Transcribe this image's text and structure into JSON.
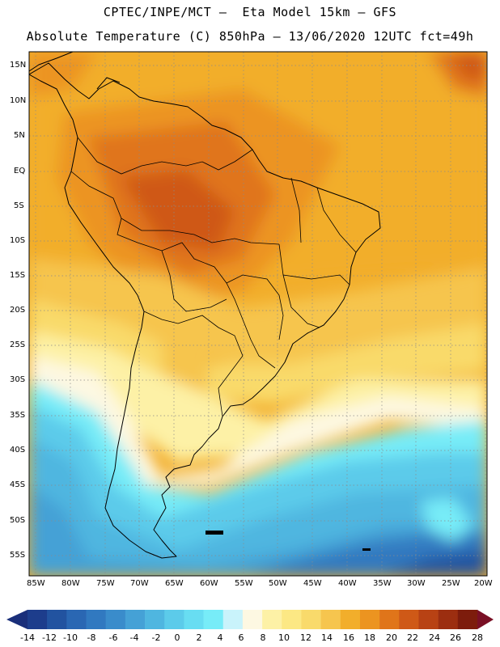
{
  "header": {
    "line1": "CPTEC/INPE/MCT –  Eta Model 15km – GFS",
    "line2": "Absolute Temperature (C) 850hPa – 13/06/2020 12UTC fct=49h"
  },
  "axes": {
    "lat_labels": [
      "15N",
      "10N",
      "5N",
      "EQ",
      "5S",
      "10S",
      "15S",
      "20S",
      "25S",
      "30S",
      "35S",
      "40S",
      "45S",
      "50S",
      "55S"
    ],
    "lon_labels": [
      "85W",
      "80W",
      "75W",
      "70W",
      "65W",
      "60W",
      "55W",
      "50W",
      "45W",
      "40W",
      "35W",
      "30W",
      "25W",
      "20W"
    ]
  },
  "colorbar": {
    "labels": [
      "-14",
      "-12",
      "-10",
      "-8",
      "-6",
      "-4",
      "-2",
      "0",
      "2",
      "4",
      "6",
      "8",
      "10",
      "12",
      "14",
      "16",
      "18",
      "20",
      "22",
      "24",
      "26",
      "28"
    ],
    "colors": [
      "#1d3d8c",
      "#2253a0",
      "#2a67b3",
      "#3179c0",
      "#3a8ccb",
      "#45a1d6",
      "#4fb6e0",
      "#5ccbea",
      "#68ddf2",
      "#77ecf8",
      "#c9f3fb",
      "#fdf8e2",
      "#fdf1a6",
      "#fce884",
      "#f9da6b",
      "#f6c54e",
      "#f2ae2b",
      "#ec9420",
      "#e0751a",
      "#cf5917",
      "#b84214",
      "#9c2e10",
      "#7d1c0c"
    ],
    "left_arrow_color": "#1a2f7a",
    "right_arrow_color": "#7a1025"
  }
}
